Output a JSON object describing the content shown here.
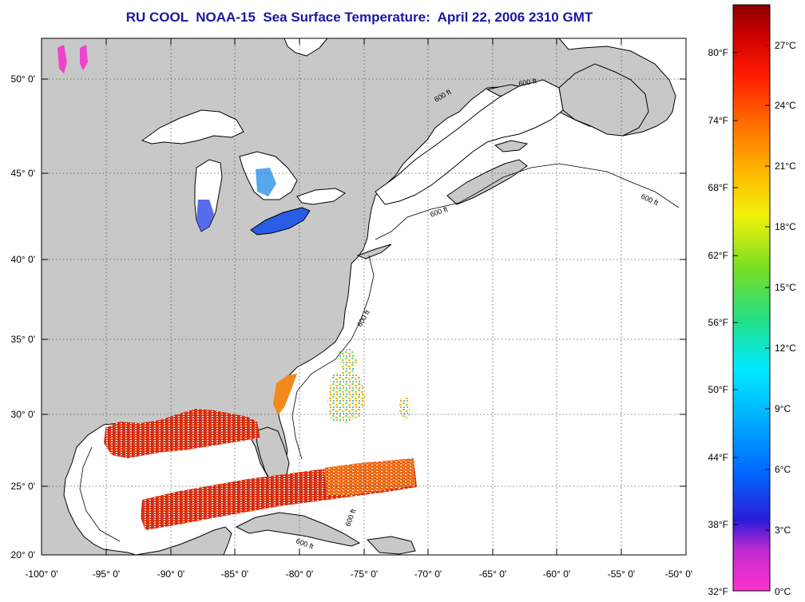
{
  "title": "RU COOL  NOAA-15  Sea Surface Temperature:  April 22, 2006 2310 GMT",
  "map": {
    "lon_range": [
      -100,
      -50
    ],
    "lat_range": [
      20,
      52.5
    ],
    "lat_ticks": [
      {
        "value": 50,
        "label": "50° 0'"
      },
      {
        "value": 45,
        "label": "45° 0'"
      },
      {
        "value": 40,
        "label": "40° 0'"
      },
      {
        "value": 35,
        "label": "35° 0'"
      },
      {
        "value": 30,
        "label": "30° 0'"
      },
      {
        "value": 25,
        "label": "25° 0'"
      },
      {
        "value": 20,
        "label": "20° 0'"
      }
    ],
    "lon_ticks": [
      {
        "value": -100,
        "label": "-100° 0'"
      },
      {
        "value": -95,
        "label": "-95° 0'"
      },
      {
        "value": -90,
        "label": "-90° 0'"
      },
      {
        "value": -85,
        "label": "-85° 0'"
      },
      {
        "value": -80,
        "label": "-80° 0'"
      },
      {
        "value": -75,
        "label": "-75° 0'"
      },
      {
        "value": -70,
        "label": "-70° 0'"
      },
      {
        "value": -65,
        "label": "-65° 0'"
      },
      {
        "value": -60,
        "label": "-60° 0'"
      },
      {
        "value": -55,
        "label": "-55° 0'"
      },
      {
        "value": -50,
        "label": "-50° 0'"
      }
    ],
    "grid": "dotted",
    "contour_labels": [
      "600 ft",
      "600 ft",
      "600 ft",
      "600 ft",
      "600 ft",
      "600 ft",
      "600 ft"
    ],
    "colors": {
      "land": "#c8c8c8",
      "water": "#ffffff",
      "coast": "#000000",
      "title": "#1a18a3"
    }
  },
  "colorbar": {
    "fahrenheit": [
      "80°F",
      "74°F",
      "68°F",
      "62°F",
      "56°F",
      "50°F",
      "44°F",
      "38°F",
      "32°F"
    ],
    "celsius": [
      "27°C",
      "24°C",
      "21°C",
      "18°C",
      "15°C",
      "12°C",
      "9°C",
      "6°C",
      "3°C",
      "0°C"
    ],
    "stops": [
      "#ff33cc",
      "#9a2bd9",
      "#2b1bd9",
      "#0055ff",
      "#00aaff",
      "#00e5ff",
      "#22e08a",
      "#66dd22",
      "#f2f20a",
      "#ffb300",
      "#ff6a00",
      "#ff1a00",
      "#cc0000",
      "#8c0000"
    ],
    "min_c": 0,
    "max_c": 29
  }
}
